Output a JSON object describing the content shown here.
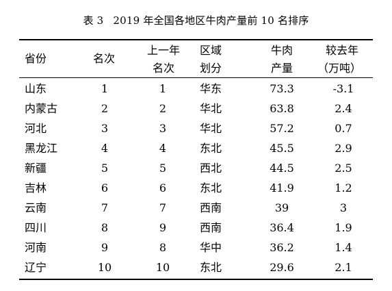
{
  "title": {
    "label": "表 3",
    "text": "2019 年全国各地区牛肉产量前 10 名排序"
  },
  "headers": {
    "province": "省份",
    "rank": "名次",
    "last_year_line1": "上一年",
    "last_year_line2": "名次",
    "region_line1": "区域",
    "region_line2": "划分",
    "production_line1": "牛肉",
    "production_line2": "产量",
    "change_line1": "较去年",
    "change_line2": "（万吨）"
  },
  "rows": [
    {
      "province": "山东",
      "rank": "1",
      "last_rank": "1",
      "region": "华东",
      "production": "73.3",
      "change": "-3.1"
    },
    {
      "province": "内蒙古",
      "rank": "2",
      "last_rank": "2",
      "region": "华北",
      "production": "63.8",
      "change": "2.4"
    },
    {
      "province": "河北",
      "rank": "3",
      "last_rank": "3",
      "region": "华北",
      "production": "57.2",
      "change": "0.7"
    },
    {
      "province": "黑龙江",
      "rank": "4",
      "last_rank": "4",
      "region": "东北",
      "production": "45.5",
      "change": "2.9"
    },
    {
      "province": "新疆",
      "rank": "5",
      "last_rank": "5",
      "region": "西北",
      "production": "44.5",
      "change": "2.5"
    },
    {
      "province": "吉林",
      "rank": "6",
      "last_rank": "6",
      "region": "东北",
      "production": "41.9",
      "change": "1.2"
    },
    {
      "province": "云南",
      "rank": "7",
      "last_rank": "7",
      "region": "西南",
      "production": "39",
      "change": "3"
    },
    {
      "province": "四川",
      "rank": "8",
      "last_rank": "9",
      "region": "西南",
      "production": "36.4",
      "change": "1.9"
    },
    {
      "province": "河南",
      "rank": "9",
      "last_rank": "8",
      "region": "华中",
      "production": "36.2",
      "change": "1.4"
    },
    {
      "province": "辽宁",
      "rank": "10",
      "last_rank": "10",
      "region": "东北",
      "production": "29.6",
      "change": "2.1"
    }
  ]
}
